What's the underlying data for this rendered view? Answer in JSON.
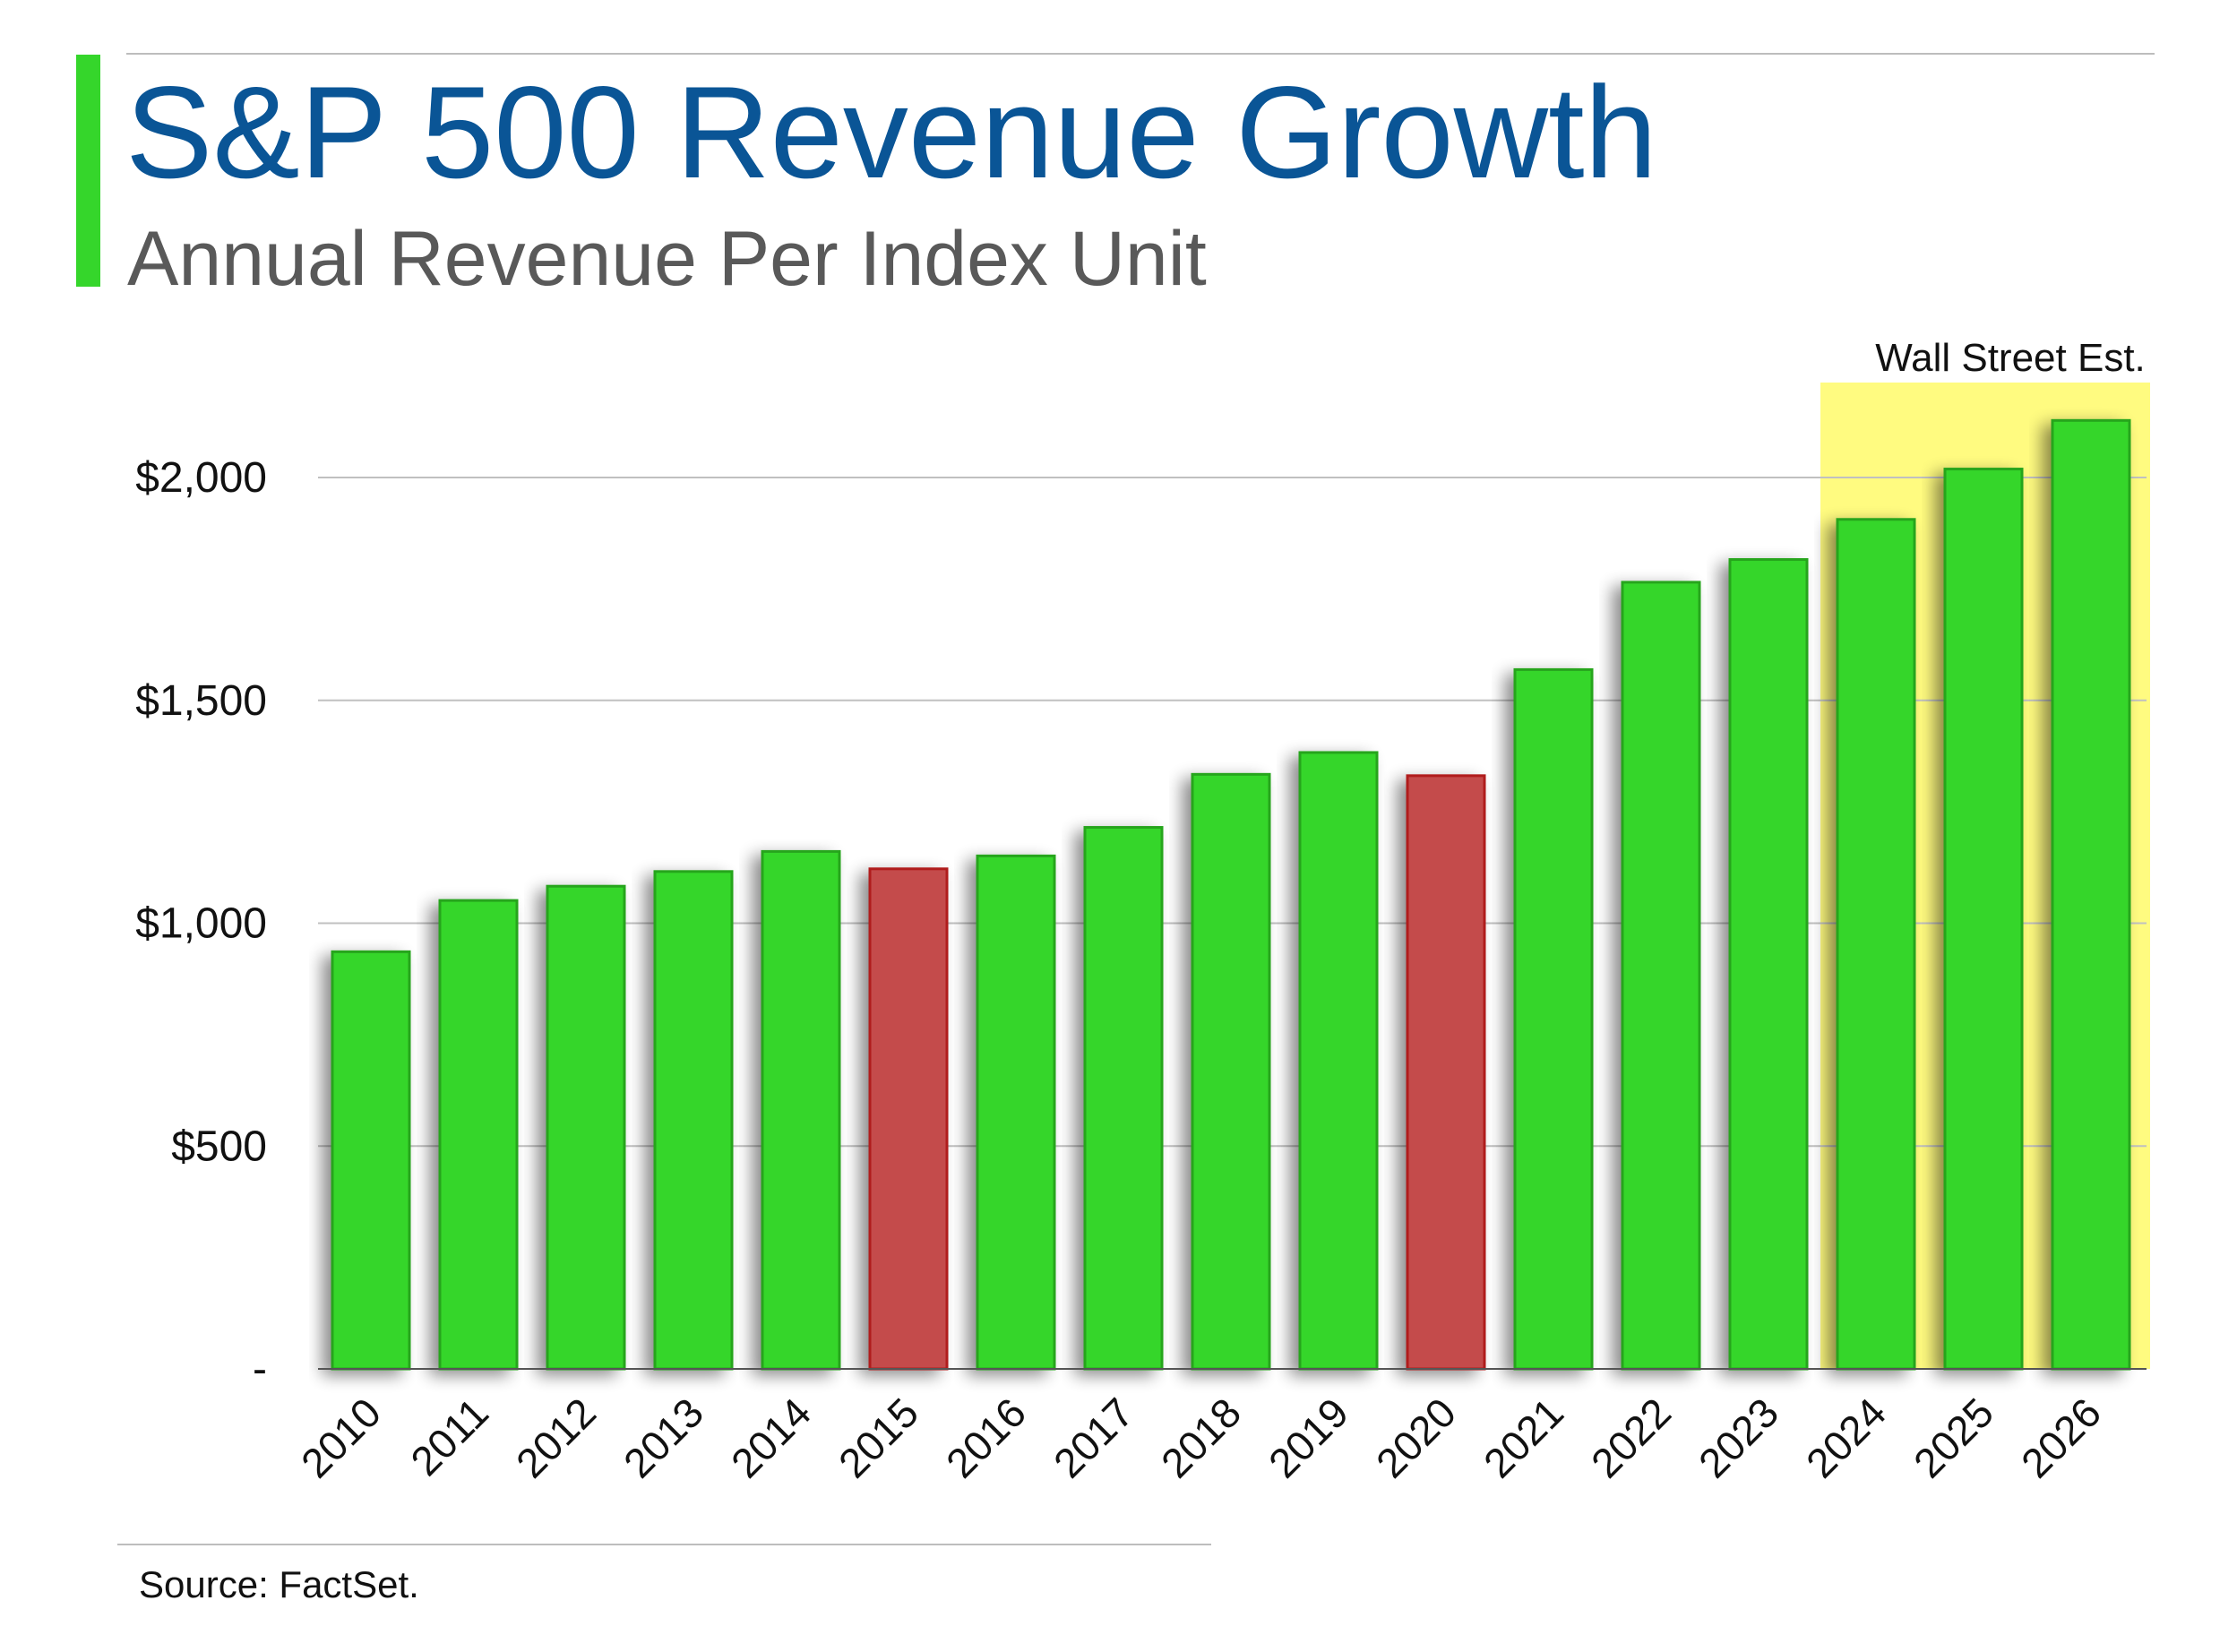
{
  "header": {
    "title": "S&P 500 Revenue Growth",
    "subtitle": "Annual Revenue Per Index Unit"
  },
  "footer": {
    "source": "Source: FactSet."
  },
  "colors": {
    "up": "#35d62b",
    "up_border": "#27a51f",
    "down": "#c44b4b",
    "down_border": "#b01c1c",
    "title": "#0a5596",
    "highlight": "#fffb80"
  },
  "chart_data": {
    "type": "bar",
    "title": "S&P 500 Revenue Growth",
    "subtitle": "Annual Revenue Per Index Unit",
    "xlabel": "",
    "ylabel": "",
    "categories": [
      "2010",
      "2011",
      "2012",
      "2013",
      "2014",
      "2015",
      "2016",
      "2017",
      "2018",
      "2019",
      "2020",
      "2021",
      "2022",
      "2023",
      "2024",
      "2025",
      "2026"
    ],
    "values": [
      936,
      1051,
      1083,
      1116,
      1161,
      1122,
      1151,
      1215,
      1334,
      1383,
      1331,
      1569,
      1765,
      1816,
      1906,
      2019,
      2128
    ],
    "declines": [
      "2015",
      "2020"
    ],
    "ylim": [
      0,
      2200
    ],
    "yticks": [
      0,
      500,
      1000,
      1500,
      2000
    ],
    "ytick_labels": [
      "-",
      "$500",
      "$1,000",
      "$1,500",
      "$2,000"
    ],
    "grid": true,
    "annotation": {
      "label": "Wall Street Est.",
      "categories": [
        "2024",
        "2025",
        "2026"
      ]
    }
  }
}
